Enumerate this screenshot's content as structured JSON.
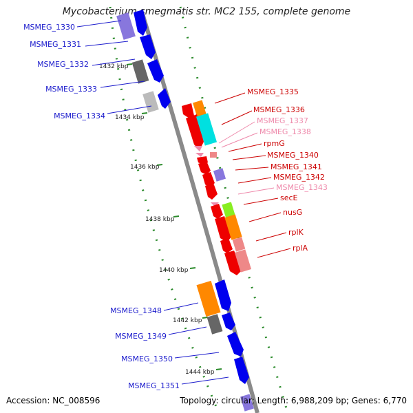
{
  "title": "Mycobacterium smegmatis str. MC2 155, complete genome",
  "footer": {
    "accession": "Accession: NC_008596",
    "summary": "Topology: circular; Length: 6,988,209 bp; Genes: 6,770"
  },
  "colors": {
    "backbone": "#8a8a8a",
    "tick_marks": "#2a8a2a",
    "label_blue": "#1a1acc",
    "label_red": "#cc0000",
    "label_pink": "#ee88aa",
    "gene_blue": "#0000ee",
    "gene_lavender": "#8877dd",
    "gene_gray": "#666666",
    "gene_lightgray": "#bbbbbb",
    "gene_red": "#ee0000",
    "gene_orange": "#ff8800",
    "gene_cyan": "#00e0e0",
    "gene_pink": "#ee8888",
    "gene_lime": "#88ee22"
  },
  "kbp_labels": [
    "1432 kbp",
    "1434 kbp",
    "1436 kbp",
    "1438 kbp",
    "1440 kbp",
    "1442 kbp",
    "1444 kbp"
  ],
  "genes_left": [
    "MSMEG_1330",
    "MSMEG_1331",
    "MSMEG_1332",
    "MSMEG_1333",
    "MSMEG_1334"
  ],
  "genes_right": [
    {
      "name": "MSMEG_1335",
      "color": "red"
    },
    {
      "name": "MSMEG_1336",
      "color": "red"
    },
    {
      "name": "MSMEG_1337",
      "color": "pink"
    },
    {
      "name": "MSMEG_1338",
      "color": "pink"
    },
    {
      "name": "rpmG",
      "color": "red"
    },
    {
      "name": "MSMEG_1340",
      "color": "red"
    },
    {
      "name": "MSMEG_1341",
      "color": "red"
    },
    {
      "name": "MSMEG_1342",
      "color": "red"
    },
    {
      "name": "MSMEG_1343",
      "color": "pink"
    },
    {
      "name": "secE",
      "color": "red"
    },
    {
      "name": "nusG",
      "color": "red"
    },
    {
      "name": "rplK",
      "color": "red"
    },
    {
      "name": "rplA",
      "color": "red"
    }
  ],
  "genes_lower_left": [
    "MSMEG_1348",
    "MSMEG_1349",
    "MSMEG_1350",
    "MSMEG_1351"
  ]
}
